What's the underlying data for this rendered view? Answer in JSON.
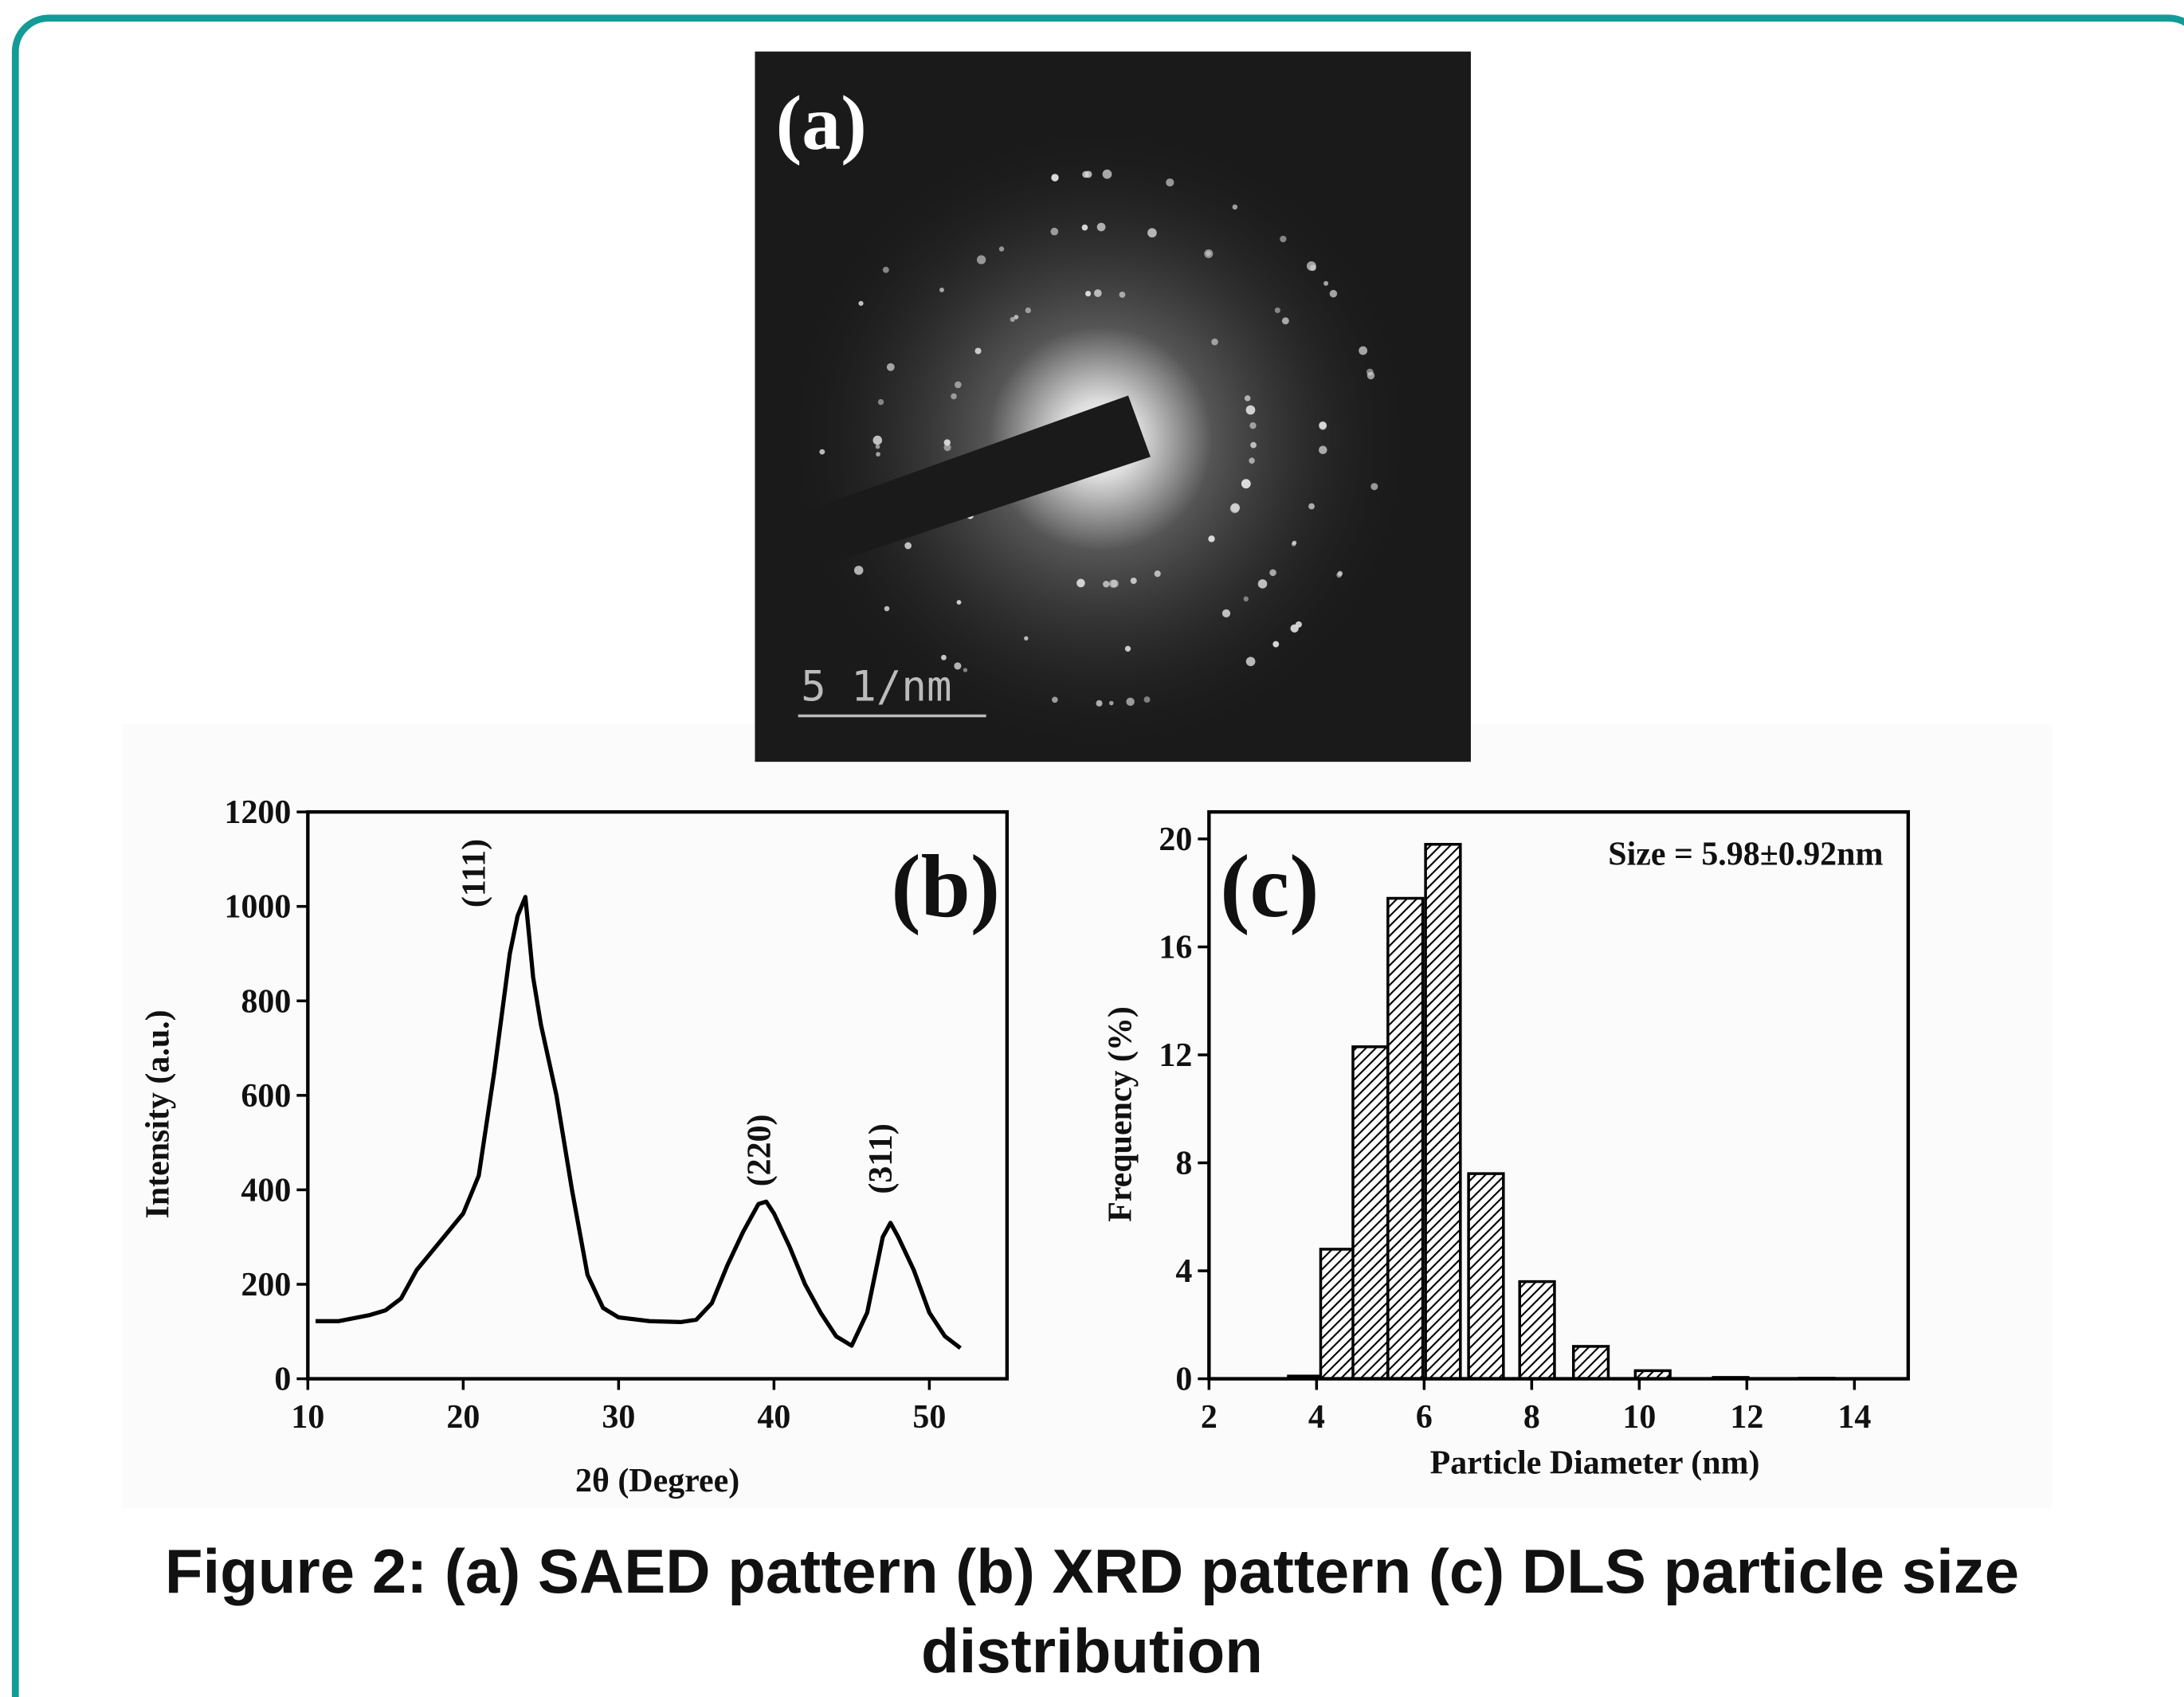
{
  "saed_image": {
    "label": "(a)",
    "scale_bar": "5 1/nm"
  },
  "chart_data": [
    {
      "type": "line",
      "panel_label": "(b)",
      "x_label": "2θ (Degree)",
      "y_label": "Intensity (a.u.)",
      "annotations": [
        "(111)",
        "(220)",
        "(311)"
      ],
      "color": "#000000",
      "x": [
        10.5,
        12,
        14,
        15,
        16,
        17,
        18,
        19,
        20,
        21,
        22,
        23,
        23.5,
        24,
        24.5,
        25,
        26,
        27,
        28,
        29,
        30,
        32,
        34,
        35,
        36,
        37,
        38,
        39,
        39.5,
        40,
        41,
        42,
        43,
        44,
        45,
        46,
        47,
        47.5,
        48,
        49,
        50,
        51,
        52
      ],
      "values": [
        122,
        122,
        135,
        145,
        170,
        230,
        270,
        310,
        350,
        430,
        650,
        900,
        980,
        1020,
        850,
        750,
        600,
        400,
        220,
        150,
        130,
        122,
        120,
        125,
        160,
        240,
        310,
        370,
        375,
        350,
        280,
        200,
        140,
        90,
        70,
        140,
        300,
        330,
        300,
        230,
        140,
        90,
        65
      ],
      "xlim": [
        10,
        55
      ],
      "xticks": [
        10,
        20,
        30,
        40,
        50
      ],
      "ylim": [
        0,
        1200
      ],
      "yticks": [
        0,
        200,
        400,
        600,
        800,
        1000,
        1200
      ]
    },
    {
      "type": "bar",
      "panel_label": "(c)",
      "x_label": "Particle Diameter (nm)",
      "y_label": "Frequency (%)",
      "annotation": "Size = 5.98±0.92nm",
      "color": "#000000",
      "x": [
        3.8,
        4.4,
        5.0,
        5.65,
        6.35,
        7.15,
        8.1,
        9.1,
        10.25,
        11.7,
        13.3
      ],
      "values": [
        0.1,
        4.8,
        12.3,
        17.8,
        19.8,
        7.6,
        3.6,
        1.2,
        0.3,
        0.05,
        0.02
      ],
      "xlim": [
        2,
        15
      ],
      "xticks": [
        2,
        4,
        6,
        8,
        10,
        12,
        14
      ],
      "ylim": [
        0,
        21
      ],
      "yticks": [
        0,
        4,
        8,
        12,
        16,
        20
      ]
    }
  ],
  "caption": "Figure 2: (a) SAED pattern (b) XRD pattern (c) DLS particle size distribution"
}
